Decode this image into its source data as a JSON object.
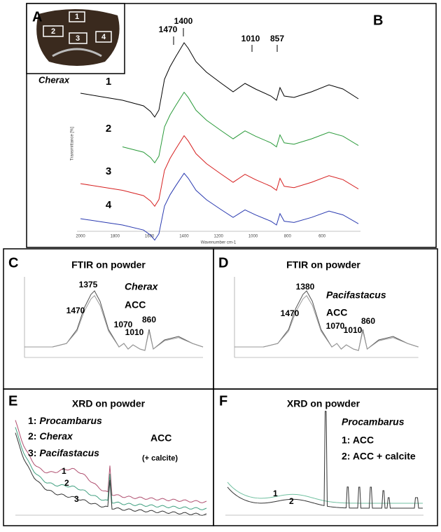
{
  "panel_a": {
    "label": "A",
    "regions": [
      "1",
      "2",
      "3",
      "4"
    ]
  },
  "panel_b": {
    "label": "B",
    "species": "Cherax",
    "peaks": [
      "1470",
      "1400",
      "1010",
      "857"
    ],
    "traces": [
      "1",
      "2",
      "3",
      "4"
    ],
    "y_axis_label": "Transmittance [%]",
    "x_axis_label": "Wavenumber cm-1",
    "x_ticks": [
      "2000",
      "1800",
      "1600",
      "1400",
      "1200",
      "1000",
      "800",
      "600"
    ]
  },
  "panel_c": {
    "label": "C",
    "title": "FTIR on powder",
    "species": "Cherax",
    "phase": "ACC",
    "peaks": [
      "1470",
      "1375",
      "1070",
      "1010",
      "860"
    ]
  },
  "panel_d": {
    "label": "D",
    "title": "FTIR on powder",
    "species": "Pacifastacus",
    "phase": "ACC",
    "peaks": [
      "1470",
      "1380",
      "1070",
      "1010",
      "860"
    ]
  },
  "panel_e": {
    "label": "E",
    "title": "XRD on powder",
    "samples": [
      {
        "number": "1:",
        "name": "Procambarus"
      },
      {
        "number": "2:",
        "name": "Cherax"
      },
      {
        "number": "3:",
        "name": "Pacifastacus"
      }
    ],
    "phase": "ACC",
    "note": "(+ calcite)",
    "traces": [
      "1",
      "2",
      "3"
    ]
  },
  "panel_f": {
    "label": "F",
    "title": "XRD on powder",
    "species": "Procambarus",
    "samples": [
      "1: ACC",
      "2: ACC + calcite"
    ],
    "traces": [
      "1",
      "2"
    ]
  }
}
